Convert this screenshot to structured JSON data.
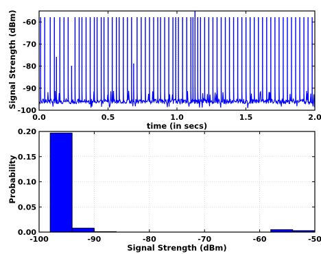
{
  "chart_data": [
    {
      "type": "line",
      "xlabel": "time (in secs)",
      "ylabel": "Signal Strength (dBm)",
      "xlim": [
        0,
        2.0
      ],
      "ylim": [
        -100,
        -55
      ],
      "xticks": [
        0,
        0.5,
        1.0,
        1.5,
        2.0
      ],
      "xtick_labels": [
        "0.0",
        "0.5",
        "1.0",
        "1.5",
        "2.0"
      ],
      "yticks": [
        -100,
        -90,
        -80,
        -70,
        -60
      ],
      "ytick_labels": [
        "-100",
        "-90",
        "-80",
        "-70",
        "-60"
      ],
      "grid": true,
      "color": "#0000ff",
      "baseline_dbm": -96,
      "spikes": {
        "time": [
          0.01,
          0.04,
          0.08,
          0.11,
          0.125,
          0.15,
          0.18,
          0.21,
          0.235,
          0.26,
          0.29,
          0.31,
          0.34,
          0.37,
          0.4,
          0.42,
          0.45,
          0.47,
          0.5,
          0.53,
          0.56,
          0.58,
          0.61,
          0.64,
          0.67,
          0.685,
          0.71,
          0.74,
          0.77,
          0.8,
          0.83,
          0.86,
          0.88,
          0.91,
          0.94,
          0.97,
          0.99,
          1.01,
          1.04,
          1.07,
          1.1,
          1.115,
          1.13,
          1.15,
          1.17,
          1.2,
          1.23,
          1.26,
          1.29,
          1.32,
          1.35,
          1.38,
          1.41,
          1.44,
          1.47,
          1.5,
          1.53,
          1.56,
          1.59,
          1.62,
          1.65,
          1.68,
          1.71,
          1.74,
          1.77,
          1.8,
          1.83,
          1.86,
          1.89,
          1.92,
          1.95,
          1.98
        ],
        "peak_dbm": [
          -58,
          -58,
          -58,
          -58,
          -76,
          -58,
          -58,
          -58,
          -80,
          -58,
          -58,
          -58,
          -58,
          -58,
          -58,
          -58,
          -58,
          -58,
          -58,
          -58,
          -58,
          -58,
          -58,
          -58,
          -58,
          -79,
          -58,
          -58,
          -58,
          -58,
          -58,
          -58,
          -58,
          -58,
          -58,
          -58,
          -58,
          -58,
          -58,
          -58,
          -58,
          -58,
          -55,
          -58,
          -58,
          -58,
          -58,
          -58,
          -58,
          -58,
          -58,
          -58,
          -58,
          -58,
          -58,
          -58,
          -58,
          -58,
          -58,
          -58,
          -58,
          -58,
          -58,
          -58,
          -58,
          -58,
          -58,
          -58,
          -58,
          -58,
          -58,
          -58
        ]
      }
    },
    {
      "type": "bar",
      "xlabel": "Signal Strength (dBm)",
      "ylabel": "Probability",
      "xlim": [
        -100,
        -50
      ],
      "ylim": [
        0,
        0.2
      ],
      "xticks": [
        -100,
        -90,
        -80,
        -70,
        -60,
        -50
      ],
      "xtick_labels": [
        "-100",
        "-90",
        "-80",
        "-70",
        "-60",
        "-50"
      ],
      "yticks": [
        0,
        0.05,
        0.1,
        0.15,
        0.2
      ],
      "ytick_labels": [
        "0.00",
        "0.05",
        "0.10",
        "0.15",
        "0.20"
      ],
      "grid": true,
      "color": "#0000ff",
      "bin_width": 4,
      "bin_start": [
        -98,
        -94,
        -90,
        -86,
        -82,
        -78,
        -74,
        -70,
        -66,
        -62,
        -58,
        -54
      ],
      "values": [
        0.197,
        0.008,
        0.001,
        0.0,
        0.0,
        0.0,
        0.0,
        0.0,
        0.0,
        0.0,
        0.005,
        0.003
      ]
    }
  ]
}
